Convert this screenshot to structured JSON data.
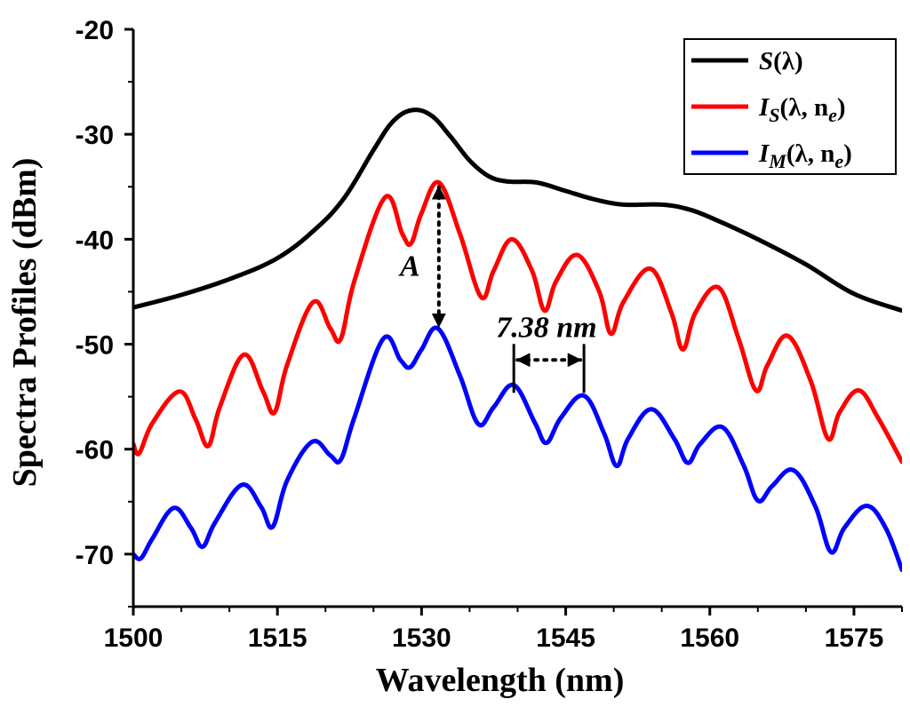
{
  "chart_data": {
    "type": "line",
    "title": "",
    "xlabel": "Wavelength (nm)",
    "ylabel": "Spectra Profiles (dBm)",
    "xlim": [
      1500,
      1580
    ],
    "ylim": [
      -75,
      -20
    ],
    "xticks": [
      1500,
      1515,
      1530,
      1545,
      1560,
      1575
    ],
    "yticks": [
      -20,
      -30,
      -40,
      -50,
      -60,
      -70
    ],
    "grid": false,
    "legend_position": "top-right",
    "series": [
      {
        "name": "S(λ)",
        "legend": {
          "main": "S",
          "sub": "",
          "args": "(λ)"
        },
        "color": "#000000",
        "points": [
          [
            1500,
            -46.5
          ],
          [
            1505,
            -45.3
          ],
          [
            1510,
            -43.8
          ],
          [
            1515,
            -41.8
          ],
          [
            1519,
            -39.0
          ],
          [
            1522,
            -36.0
          ],
          [
            1525,
            -31.5
          ],
          [
            1527,
            -28.8
          ],
          [
            1529,
            -27.7
          ],
          [
            1531,
            -28.2
          ],
          [
            1533,
            -30.2
          ],
          [
            1535,
            -32.5
          ],
          [
            1537,
            -34.0
          ],
          [
            1539,
            -34.5
          ],
          [
            1542,
            -34.6
          ],
          [
            1545,
            -35.4
          ],
          [
            1548,
            -36.2
          ],
          [
            1551,
            -36.7
          ],
          [
            1555,
            -36.7
          ],
          [
            1558,
            -37.2
          ],
          [
            1561,
            -38.3
          ],
          [
            1565,
            -40.0
          ],
          [
            1570,
            -42.4
          ],
          [
            1575,
            -45.2
          ],
          [
            1580,
            -46.8
          ]
        ]
      },
      {
        "name": "I_S(λ, n_e)",
        "legend": {
          "main": "I",
          "sub": "S",
          "args": "(λ, n",
          "sub2": "e",
          "close": ")"
        },
        "color": "#ff0000",
        "points": [
          [
            1500,
            -59.5
          ],
          [
            1500.6,
            -60.4
          ],
          [
            1502,
            -57.5
          ],
          [
            1504.8,
            -54.5
          ],
          [
            1506.5,
            -57.2
          ],
          [
            1507.8,
            -59.7
          ],
          [
            1509,
            -56
          ],
          [
            1511.5,
            -51.0
          ],
          [
            1513.5,
            -54.5
          ],
          [
            1514.7,
            -56.5
          ],
          [
            1516,
            -52
          ],
          [
            1518.7,
            -46.0
          ],
          [
            1520.5,
            -48.5
          ],
          [
            1521.6,
            -49.5
          ],
          [
            1523,
            -44
          ],
          [
            1526.2,
            -36.0
          ],
          [
            1528,
            -39.5
          ],
          [
            1528.9,
            -40.4
          ],
          [
            1530,
            -37.5
          ],
          [
            1531.8,
            -34.6
          ],
          [
            1534,
            -39.5
          ],
          [
            1536.2,
            -45.5
          ],
          [
            1537.5,
            -43
          ],
          [
            1539.4,
            -40.0
          ],
          [
            1541.5,
            -43
          ],
          [
            1542.8,
            -46.8
          ],
          [
            1544,
            -44
          ],
          [
            1546.2,
            -41.5
          ],
          [
            1548.5,
            -45
          ],
          [
            1549.7,
            -49.0
          ],
          [
            1551,
            -46
          ],
          [
            1553.8,
            -42.8
          ],
          [
            1556,
            -47
          ],
          [
            1557.2,
            -50.5
          ],
          [
            1558.5,
            -47
          ],
          [
            1560.9,
            -44.6
          ],
          [
            1563,
            -49.5
          ],
          [
            1564.8,
            -54.4
          ],
          [
            1566,
            -52
          ],
          [
            1568.1,
            -49.2
          ],
          [
            1570.5,
            -53.5
          ],
          [
            1572.3,
            -59.0
          ],
          [
            1573.5,
            -56.5
          ],
          [
            1575.5,
            -54.4
          ],
          [
            1577.5,
            -57
          ],
          [
            1580,
            -61.2
          ]
        ]
      },
      {
        "name": "I_M(λ, n_e)",
        "legend": {
          "main": "I",
          "sub": "M",
          "args": "(λ, n",
          "sub2": "e",
          "close": ")"
        },
        "color": "#0000ff",
        "points": [
          [
            1500,
            -70.0
          ],
          [
            1500.8,
            -70.4
          ],
          [
            1502,
            -68.5
          ],
          [
            1504.2,
            -65.6
          ],
          [
            1506,
            -67.5
          ],
          [
            1507.2,
            -69.3
          ],
          [
            1508.5,
            -67
          ],
          [
            1511.3,
            -63.4
          ],
          [
            1513.3,
            -65.5
          ],
          [
            1514.5,
            -67.4
          ],
          [
            1516,
            -63
          ],
          [
            1518.6,
            -59.3
          ],
          [
            1520.5,
            -60.6
          ],
          [
            1521.6,
            -61.0
          ],
          [
            1523,
            -57
          ],
          [
            1526.0,
            -49.5
          ],
          [
            1527.8,
            -51.5
          ],
          [
            1528.8,
            -52.2
          ],
          [
            1530,
            -50.5
          ],
          [
            1531.7,
            -48.5
          ],
          [
            1534,
            -53
          ],
          [
            1535.9,
            -57.6
          ],
          [
            1537.5,
            -56
          ],
          [
            1539.6,
            -53.9
          ],
          [
            1541.8,
            -57.5
          ],
          [
            1543,
            -59.4
          ],
          [
            1544.5,
            -57
          ],
          [
            1546.9,
            -54.9
          ],
          [
            1549,
            -58.5
          ],
          [
            1550.3,
            -61.6
          ],
          [
            1551.5,
            -59
          ],
          [
            1553.9,
            -56.2
          ],
          [
            1556.3,
            -59
          ],
          [
            1557.7,
            -61.3
          ],
          [
            1559,
            -59.5
          ],
          [
            1561.3,
            -57.9
          ],
          [
            1563.5,
            -61.5
          ],
          [
            1565.0,
            -64.9
          ],
          [
            1566.5,
            -63.5
          ],
          [
            1568.7,
            -62.0
          ],
          [
            1571,
            -65.5
          ],
          [
            1572.6,
            -69.8
          ],
          [
            1574,
            -67.5
          ],
          [
            1576.3,
            -65.4
          ],
          [
            1578.3,
            -67.5
          ],
          [
            1580,
            -71.5
          ]
        ]
      }
    ],
    "annotations": [
      {
        "text": "A",
        "kind": "double-arrow-vertical",
        "x": 1531.8,
        "y_from": -35.0,
        "y_to": -48.3,
        "label_x": 1528.8,
        "label_y": -43.5
      },
      {
        "text": "7.38 nm",
        "kind": "double-arrow-horizontal",
        "x_from": 1539.6,
        "x_to": 1546.9,
        "y": -51.5,
        "label_x": 1543.0,
        "label_y": -49.3
      }
    ]
  }
}
